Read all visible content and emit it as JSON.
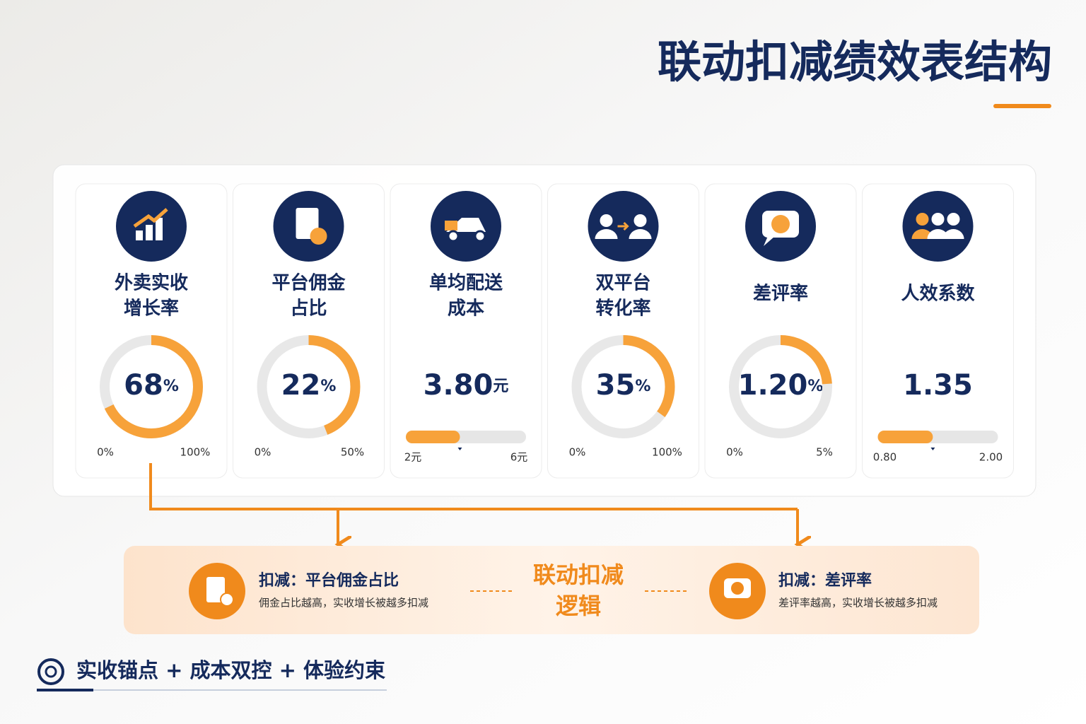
{
  "title": "联动扣减绩效表结构",
  "cards": [
    {
      "label": [
        "外卖实收",
        "增长率"
      ],
      "gauge": "ring",
      "value": 68,
      "value_label": "68",
      "unit": "%",
      "scale": [
        {
          "value": 0,
          "label": "0%"
        },
        {
          "value": 100,
          "label": "100%"
        }
      ]
    },
    {
      "label": [
        "平台佣金",
        "占比"
      ],
      "gauge": "ring",
      "value": 22,
      "value_label": "22",
      "unit": "%",
      "scale": [
        {
          "value": 0,
          "label": "0%"
        },
        {
          "value": 50,
          "label": "50%"
        }
      ]
    },
    {
      "label": [
        "单均配送",
        "成本"
      ],
      "gauge": "bar",
      "value": 3.8,
      "value_label": "3.80",
      "unit": "元",
      "scale": [
        {
          "value": 2,
          "label": "2元"
        },
        {
          "value": 6,
          "label": "6元"
        }
      ]
    },
    {
      "label": [
        "双平台",
        "转化率"
      ],
      "gauge": "ring",
      "value": 35,
      "value_label": "35",
      "unit": "%",
      "scale": [
        {
          "value": 0,
          "label": "0%"
        },
        {
          "value": 100,
          "label": "100%"
        }
      ]
    },
    {
      "label": [
        "差评率"
      ],
      "gauge": "ring",
      "value": 1.2,
      "value_label": "1.20",
      "unit": "%",
      "scale": [
        {
          "value": 0,
          "label": "0%"
        },
        {
          "value": 5,
          "label": "5%"
        }
      ]
    },
    {
      "label": [
        "人效系数"
      ],
      "gauge": "bar",
      "value": 1.35,
      "value_label": "1.35",
      "scale": [
        {
          "value": 0.8,
          "label": "0.80"
        },
        {
          "value": 2,
          "label": "2.00"
        }
      ]
    }
  ],
  "logic": {
    "title": [
      "联动扣减",
      "逻辑"
    ],
    "left": {
      "heading": "扣减：平台佣金占比",
      "text": "佣金占比越高，实收增长被越多扣减"
    },
    "right": {
      "heading": "扣减：差评率",
      "text": "差评率越高，实收增长被越多扣减"
    }
  },
  "footer": "实收锚点 + 成本双控 + 体验约束"
}
